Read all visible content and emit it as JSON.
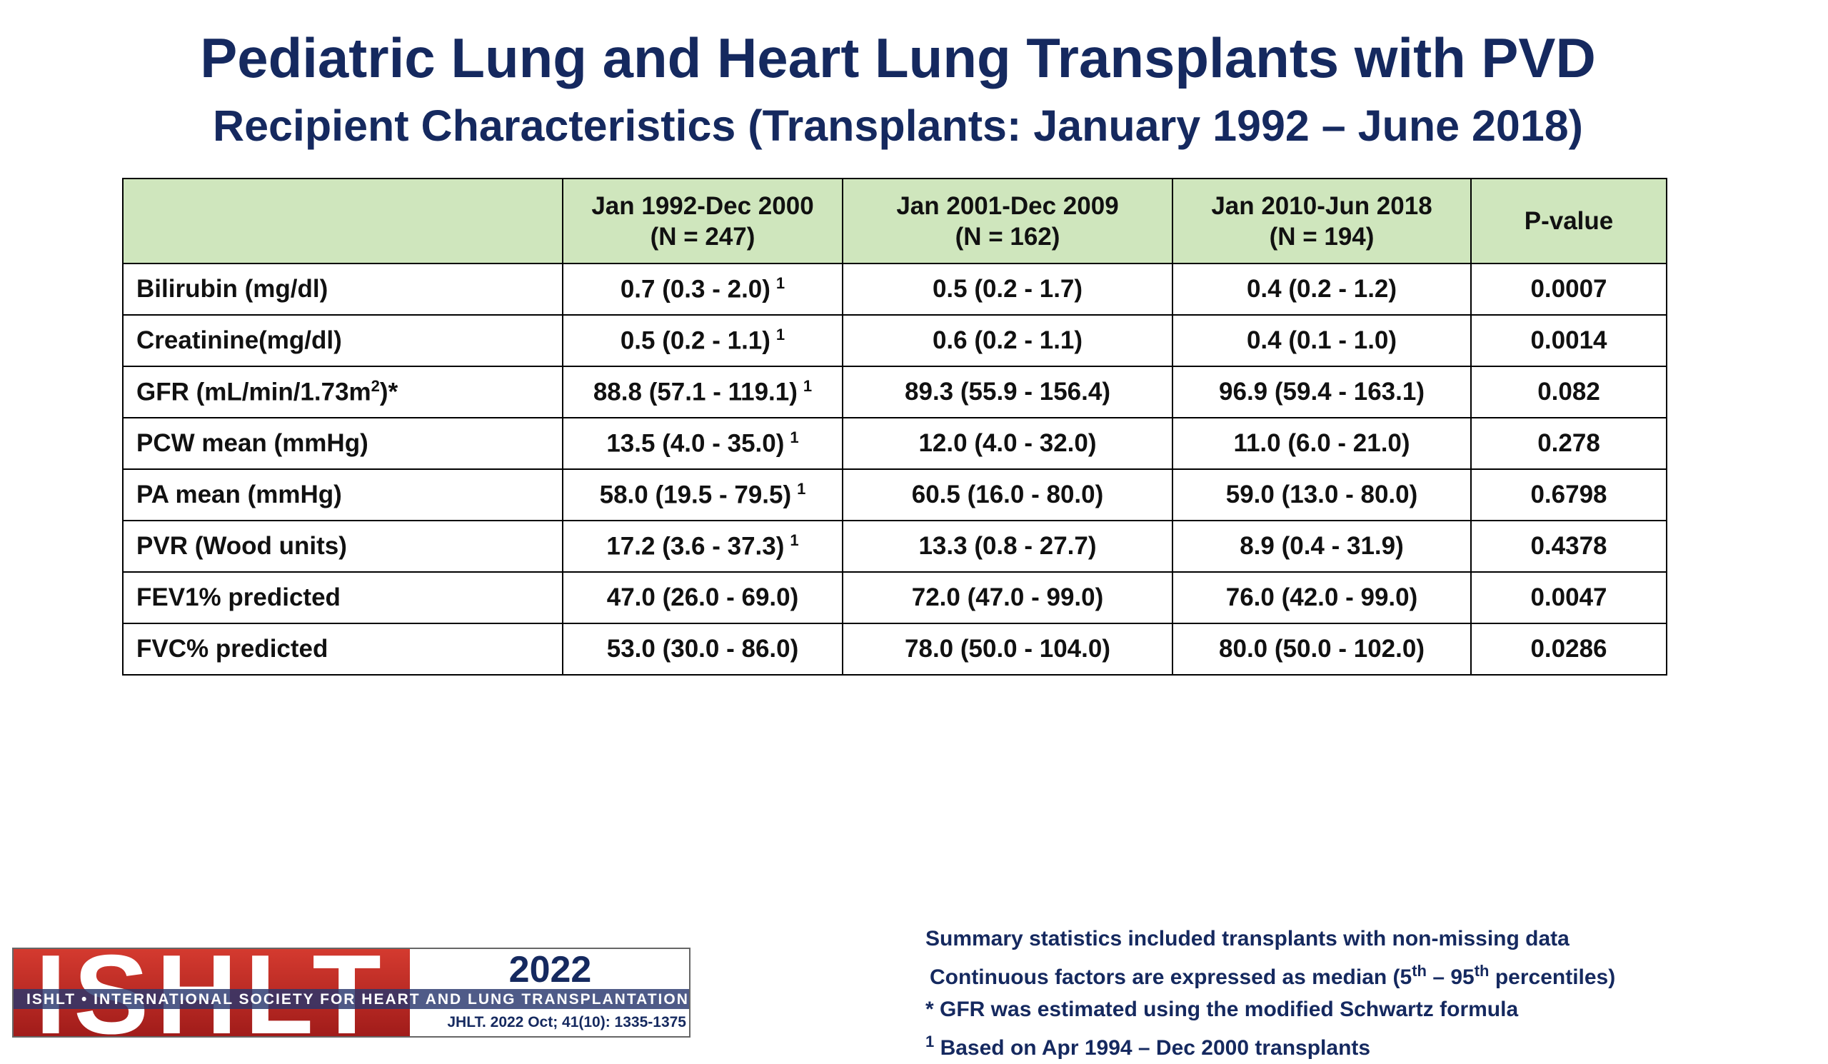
{
  "title": "Pediatric Lung and Heart Lung Transplants with PVD",
  "subtitle": "Recipient Characteristics (Transplants: January 1992 – June 2018)",
  "table": {
    "headers": [
      {
        "line1": "",
        "line2": ""
      },
      {
        "line1": "Jan 1992-Dec 2000",
        "line2": "(N = 247)"
      },
      {
        "line1": "Jan 2001-Dec 2009",
        "line2": "(N = 162)"
      },
      {
        "line1": "Jan 2010-Jun 2018",
        "line2": "(N = 194)"
      },
      {
        "line1": "P-value",
        "line2": ""
      }
    ],
    "rows": [
      {
        "label": "Bilirubin (mg/dl)",
        "c1": "0.7 (0.3 - 2.0)",
        "c1_ref": "1",
        "c2": "0.5 (0.2 - 1.7)",
        "c3": "0.4 (0.2 - 1.2)",
        "p": "0.0007"
      },
      {
        "label": "Creatinine(mg/dl)",
        "c1": "0.5 (0.2 - 1.1)",
        "c1_ref": "1",
        "c2": "0.6 (0.2 - 1.1)",
        "c3": "0.4 (0.1 - 1.0)",
        "p": "0.0014"
      },
      {
        "label": "GFR (mL/min/1.73m",
        "label_sup": "2",
        "label_suffix": ")*",
        "c1": "88.8 (57.1 - 119.1)",
        "c1_ref": "1",
        "c2": "89.3 (55.9 - 156.4)",
        "c3": "96.9 (59.4 - 163.1)",
        "p": "0.082"
      },
      {
        "label": "PCW mean (mmHg)",
        "c1": "13.5 (4.0 - 35.0)",
        "c1_ref": "1",
        "c2": "12.0 (4.0 - 32.0)",
        "c3": "11.0 (6.0 - 21.0)",
        "p": "0.278"
      },
      {
        "label": "PA mean (mmHg)",
        "c1": "58.0 (19.5 - 79.5)",
        "c1_ref": "1",
        "c2": "60.5 (16.0 - 80.0)",
        "c3": "59.0 (13.0 - 80.0)",
        "p": "0.6798"
      },
      {
        "label": "PVR (Wood units)",
        "c1": "17.2 (3.6 - 37.3)",
        "c1_ref": "1",
        "c2": "13.3 (0.8 - 27.7)",
        "c3": "8.9 (0.4 - 31.9)",
        "p": "0.4378"
      },
      {
        "label": "FEV1% predicted",
        "c1": "47.0 (26.0 - 69.0)",
        "c2": "72.0 (47.0 - 99.0)",
        "c3": "76.0 (42.0 - 99.0)",
        "p": "0.0047"
      },
      {
        "label": "FVC% predicted",
        "c1": "53.0 (30.0 - 86.0)",
        "c2": "78.0 (50.0 - 104.0)",
        "c3": "80.0 (50.0 - 102.0)",
        "p": "0.0286"
      }
    ]
  },
  "logo": {
    "word": "ISHLT",
    "year": "2022",
    "tagline": "ISHLT • INTERNATIONAL SOCIETY FOR HEART AND LUNG TRANSPLANTATION",
    "citation": "JHLT. 2022 Oct; 41(10): 1335-1375",
    "colors": {
      "red": "#c0282a",
      "navy": "#15295f"
    }
  },
  "footnotes": {
    "line1": "Summary statistics included transplants with non-missing data",
    "line2_pre": "Continuous factors are expressed as median (5",
    "line2_sup1": "th",
    "line2_mid": " – 95",
    "line2_sup2": "th",
    "line2_post": " percentiles)",
    "line3": "* GFR was estimated using the modified Schwartz formula",
    "line4_sup": "1",
    "line4": " Based on Apr 1994 – Dec 2000 transplants"
  }
}
